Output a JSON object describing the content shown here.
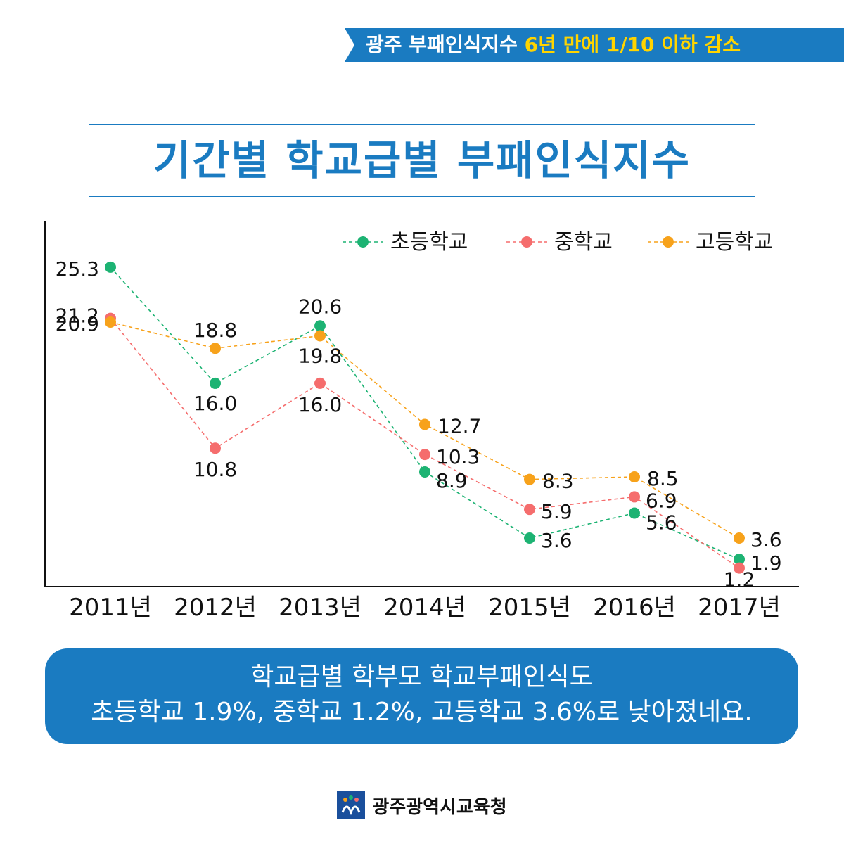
{
  "banner": {
    "text_main": "광주 부패인식지수",
    "text_highlight": "6년 만에 1/10 이하 감소",
    "bg_color": "#1a7bc1",
    "highlight_color": "#ffd400"
  },
  "title": "기간별 학교급별 부패인식지수",
  "chart_data": {
    "type": "line",
    "title": "기간별 학교급별 부패인식지수",
    "categories": [
      "2011년",
      "2012년",
      "2013년",
      "2014년",
      "2015년",
      "2016년",
      "2017년"
    ],
    "series": [
      {
        "name": "초등학교",
        "color": "#1db373",
        "values": [
          25.3,
          16.0,
          20.6,
          8.9,
          3.6,
          5.6,
          1.9
        ],
        "labels": [
          "25.3",
          "16.0",
          "20.6",
          "8.9",
          "3.6",
          "5.6",
          "1.9"
        ]
      },
      {
        "name": "중학교",
        "color": "#f56d6d",
        "values": [
          21.2,
          10.8,
          16.0,
          10.3,
          5.9,
          6.9,
          1.2
        ],
        "labels": [
          "21.2",
          "10.8",
          "16.0",
          "10.3",
          "5.9",
          "6.9",
          "1.2"
        ]
      },
      {
        "name": "고등학교",
        "color": "#f7a21b",
        "values": [
          20.9,
          18.8,
          19.8,
          12.7,
          8.3,
          8.5,
          3.6
        ],
        "labels": [
          "20.9",
          "18.8",
          "19.8",
          "12.7",
          "8.3",
          "8.5",
          "3.6"
        ]
      }
    ],
    "ylim": [
      -0.4,
      29.8
    ],
    "line_style": "dashed",
    "grid": false,
    "legend": "top-right"
  },
  "summary": {
    "line1": "학교급별 학부모 학교부패인식도",
    "line2": "초등학교 1.9%, 중학교 1.2%, 고등학교 3.6%로 낮아졌네요."
  },
  "footer": {
    "org_name": "광주광역시교육청",
    "logo_icon": "gwangju-education-office-logo-icon"
  }
}
